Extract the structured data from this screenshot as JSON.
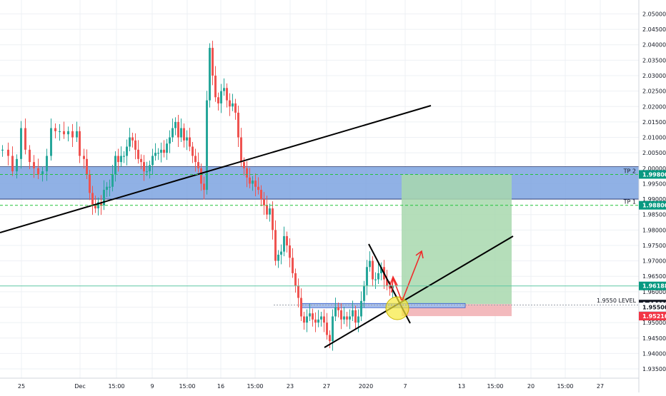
{
  "chart_data": {
    "type": "candlestick",
    "title": "",
    "y_axis": {
      "ylim": [
        1.932,
        2.0545
      ],
      "ticks": [
        "2.05000",
        "2.04500",
        "2.04000",
        "2.03500",
        "2.03000",
        "2.02500",
        "2.02000",
        "2.01500",
        "2.01000",
        "2.00500",
        "2.00000",
        "1.99500",
        "1.99000",
        "1.98500",
        "1.98000",
        "1.97500",
        "1.97000",
        "1.96500",
        "1.96000",
        "1.95500",
        "1.95000",
        "1.94500",
        "1.94000",
        "1.93500"
      ],
      "position": "right"
    },
    "x_axis": {
      "labels": [
        "25",
        "Dec",
        "15:00",
        "9",
        "15:00",
        "16",
        "15:00",
        "23",
        "27",
        "2020",
        "7",
        "13",
        "15:00",
        "20",
        "15:00",
        "27"
      ]
    },
    "price_tags": [
      {
        "value": "1.99800",
        "color": "#089981",
        "text": "TP 2"
      },
      {
        "value": "1.98800",
        "color": "#089981",
        "text": "TP 1"
      },
      {
        "value": "1.96188",
        "color": "#089981",
        "text": ""
      },
      {
        "value": "1.95600",
        "color": "#131722",
        "text": "1.9550 LEVEL"
      },
      {
        "value": "1.95500",
        "color": "#ffffff",
        "text": ""
      },
      {
        "value": "1.95210",
        "color": "#f23645",
        "text": ""
      }
    ],
    "zones": [
      {
        "name": "resistance-zone",
        "from": 1.99,
        "to": 2.0005,
        "color": "#7da3e0"
      },
      {
        "name": "support-zone",
        "from": 1.9553,
        "to": 1.9562,
        "color": "#7da3e0"
      }
    ],
    "levels": [
      {
        "name": "tp2-line",
        "value": 1.998,
        "style": "dashed",
        "color": "#23c33a"
      },
      {
        "name": "tp1-line",
        "value": 1.988,
        "style": "dashed",
        "color": "#23c33a"
      },
      {
        "name": "current-price-line",
        "value": 1.96188,
        "style": "solid",
        "color": "#5fc7a3"
      },
      {
        "name": "level-line",
        "value": 1.9557,
        "style": "dotted",
        "color": "#ffffff"
      }
    ],
    "position": {
      "entry": 1.956,
      "target": 1.998,
      "stop": 1.9521
    },
    "colors": {
      "up": "#26a69a",
      "down": "#ef5350",
      "zone": "#7da3e0",
      "profit": "#a8d8ae",
      "loss": "#f2b3b6",
      "highlight": "#f7ea3c",
      "arrow": "#f02b2b"
    },
    "grid": true,
    "candle_close_path": [
      [
        0,
        2.006
      ],
      [
        8,
        2.004
      ],
      [
        14,
        1.999
      ],
      [
        20,
        2.003
      ],
      [
        26,
        2.013
      ],
      [
        32,
        2.006
      ],
      [
        38,
        2.002
      ],
      [
        44,
        2.0
      ],
      [
        50,
        1.998
      ],
      [
        56,
        1.999
      ],
      [
        62,
        2.004
      ],
      [
        68,
        2.013
      ],
      [
        74,
        2.012
      ],
      [
        80,
        2.012
      ],
      [
        86,
        2.011
      ],
      [
        92,
        2.012
      ],
      [
        98,
        2.01
      ],
      [
        104,
        2.012
      ],
      [
        108,
        2.004
      ],
      [
        114,
        2.003
      ],
      [
        118,
        1.998
      ],
      [
        122,
        1.992
      ],
      [
        126,
        1.988
      ],
      [
        130,
        1.987
      ],
      [
        134,
        1.989
      ],
      [
        138,
        1.988
      ],
      [
        142,
        1.993
      ],
      [
        146,
        1.994
      ],
      [
        150,
        1.994
      ],
      [
        154,
        1.998
      ],
      [
        158,
        2.004
      ],
      [
        162,
        2.002
      ],
      [
        166,
        2.004
      ],
      [
        170,
        2.004
      ],
      [
        174,
        2.007
      ],
      [
        178,
        2.01
      ],
      [
        182,
        2.009
      ],
      [
        186,
        2.006
      ],
      [
        190,
        2.003
      ],
      [
        194,
        2.002
      ],
      [
        198,
        1.999
      ],
      [
        202,
        1.999
      ],
      [
        206,
        2.001
      ],
      [
        210,
        2.004
      ],
      [
        214,
        2.005
      ],
      [
        218,
        2.005
      ],
      [
        222,
        2.006
      ],
      [
        226,
        2.005
      ],
      [
        230,
        2.008
      ],
      [
        234,
        2.01
      ],
      [
        238,
        2.013
      ],
      [
        242,
        2.015
      ],
      [
        246,
        2.01
      ],
      [
        250,
        2.013
      ],
      [
        254,
        2.009
      ],
      [
        258,
        2.01
      ],
      [
        262,
        2.007
      ],
      [
        266,
        2.004
      ],
      [
        270,
        2.002
      ],
      [
        274,
        2.0
      ],
      [
        278,
        1.995
      ],
      [
        282,
        1.993
      ],
      [
        286,
        2.022
      ],
      [
        290,
        2.039
      ],
      [
        294,
        2.03
      ],
      [
        298,
        2.023
      ],
      [
        302,
        2.021
      ],
      [
        306,
        2.025
      ],
      [
        310,
        2.026
      ],
      [
        314,
        2.022
      ],
      [
        318,
        2.02
      ],
      [
        322,
        2.021
      ],
      [
        326,
        2.018
      ],
      [
        330,
        2.01
      ],
      [
        334,
        2.002
      ],
      [
        338,
        2.0
      ],
      [
        342,
        1.997
      ],
      [
        346,
        1.995
      ],
      [
        350,
        1.996
      ],
      [
        354,
        1.994
      ],
      [
        358,
        1.993
      ],
      [
        362,
        1.99
      ],
      [
        366,
        1.988
      ],
      [
        370,
        1.985
      ],
      [
        374,
        1.987
      ],
      [
        378,
        1.98
      ],
      [
        382,
        1.97
      ],
      [
        386,
        1.972
      ],
      [
        390,
        1.973
      ],
      [
        394,
        1.978
      ],
      [
        398,
        1.975
      ],
      [
        402,
        1.971
      ],
      [
        406,
        1.966
      ],
      [
        410,
        1.962
      ],
      [
        414,
        1.958
      ],
      [
        418,
        1.952
      ],
      [
        422,
        1.95
      ],
      [
        426,
        1.952
      ],
      [
        430,
        1.953
      ],
      [
        434,
        1.951
      ],
      [
        438,
        1.95
      ],
      [
        442,
        1.951
      ],
      [
        446,
        1.952
      ],
      [
        450,
        1.95
      ],
      [
        454,
        1.946
      ],
      [
        458,
        1.944
      ],
      [
        462,
        1.952
      ],
      [
        466,
        1.955
      ],
      [
        470,
        1.954
      ],
      [
        474,
        1.951
      ],
      [
        478,
        1.952
      ],
      [
        482,
        1.951
      ],
      [
        486,
        1.952
      ],
      [
        490,
        1.954
      ],
      [
        494,
        1.95
      ],
      [
        498,
        1.952
      ],
      [
        502,
        1.957
      ],
      [
        506,
        1.962
      ],
      [
        510,
        1.968
      ],
      [
        514,
        1.97
      ],
      [
        518,
        1.964
      ],
      [
        522,
        1.964
      ],
      [
        526,
        1.966
      ],
      [
        530,
        1.968
      ],
      [
        534,
        1.964
      ],
      [
        538,
        1.962
      ],
      [
        542,
        1.961
      ],
      [
        546,
        1.962
      ]
    ]
  }
}
